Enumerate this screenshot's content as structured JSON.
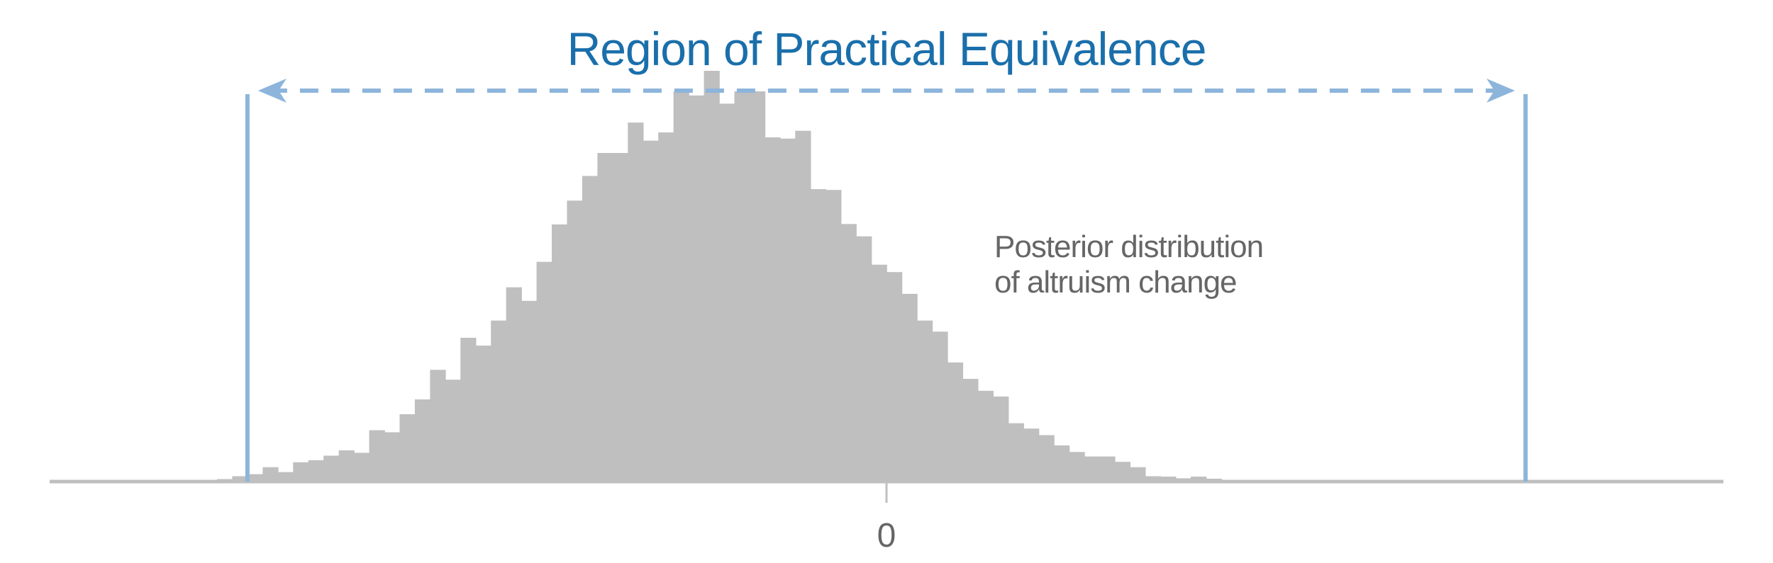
{
  "chart_data": {
    "type": "bar",
    "title": "Region of Practical Equivalence",
    "annotation": [
      "Posterior distribution",
      "of altruism change"
    ],
    "xlabel": "",
    "ylabel": "",
    "x_ticks": [
      {
        "value": 0,
        "label": "0"
      }
    ],
    "xlim": [
      -2.75,
      2.75
    ],
    "ylim": [
      0,
      1.0
    ],
    "rope": [
      -2.1,
      2.1
    ],
    "bin_start": -2.2,
    "bin_width": 0.05,
    "values": [
      0.006,
      0.013,
      0.018,
      0.035,
      0.023,
      0.047,
      0.052,
      0.063,
      0.076,
      0.07,
      0.125,
      0.12,
      0.164,
      0.2,
      0.272,
      0.248,
      0.35,
      0.331,
      0.392,
      0.473,
      0.44,
      0.535,
      0.626,
      0.684,
      0.744,
      0.8,
      0.8,
      0.874,
      0.83,
      0.85,
      0.95,
      0.94,
      1.0,
      0.92,
      0.95,
      0.95,
      0.838,
      0.835,
      0.854,
      0.712,
      0.71,
      0.627,
      0.597,
      0.528,
      0.51,
      0.457,
      0.392,
      0.365,
      0.29,
      0.25,
      0.221,
      0.207,
      0.142,
      0.129,
      0.113,
      0.088,
      0.072,
      0.061,
      0.061,
      0.048,
      0.035,
      0.013,
      0.012,
      0.008,
      0.012,
      0.007,
      0.004,
      0.003
    ],
    "tail_values": [
      0.002,
      0.002,
      0.002,
      0.002,
      0.001,
      0.001
    ],
    "grid": false,
    "legend": "none"
  },
  "colors": {
    "bars": "#bfbfbf",
    "rope": "#8db5db",
    "axis": "#bfbfbf",
    "title": "#1a6fab",
    "text": "#666666"
  }
}
